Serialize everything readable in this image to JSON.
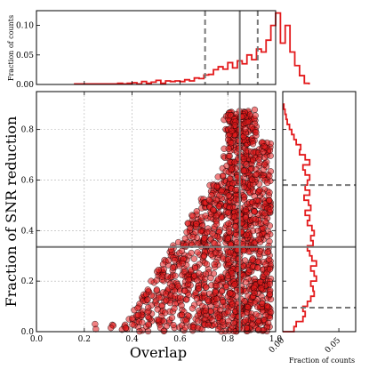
{
  "chart_data": [
    {
      "panel": "main",
      "type": "scatter",
      "xlabel": "Overlap",
      "ylabel": "Fraction of SNR reduction",
      "xlim": [
        0.0,
        1.0
      ],
      "ylim": [
        0.0,
        0.95
      ],
      "xticks": [
        "0.0",
        "0.2",
        "0.4",
        "0.6",
        "0.8",
        "1.0"
      ],
      "yticks": [
        "0.0",
        "0.2",
        "0.4",
        "0.6",
        "0.8"
      ],
      "grid": true,
      "marker_color": "#e31a1c",
      "marker_edge": "#000000",
      "reference_lines": {
        "x_median": 0.85,
        "y_median": 0.335
      },
      "point_density": [
        {
          "x_range": [
            0.15,
            0.3
          ],
          "count": 2
        },
        {
          "x_range": [
            0.3,
            0.4
          ],
          "count": 10
        },
        {
          "x_range": [
            0.4,
            0.5
          ],
          "count": 55
        },
        {
          "x_range": [
            0.5,
            0.6
          ],
          "count": 110
        },
        {
          "x_range": [
            0.6,
            0.7
          ],
          "count": 170
        },
        {
          "x_range": [
            0.7,
            0.8
          ],
          "count": 260
        },
        {
          "x_range": [
            0.8,
            0.9
          ],
          "count": 600
        },
        {
          "x_range": [
            0.9,
            0.98
          ],
          "count": 320
        }
      ]
    },
    {
      "panel": "top-histogram",
      "type": "histogram",
      "ylabel": "Fraction of counts",
      "xlim": [
        0.0,
        1.0
      ],
      "ylim": [
        0.0,
        0.125
      ],
      "yticks": [
        "0.00",
        "0.05",
        "0.10"
      ],
      "color": "#e31a1c",
      "bin_width": 0.02,
      "bin_start": 0.16,
      "values": [
        0.001,
        0.001,
        0.001,
        0.001,
        0.001,
        0.001,
        0.001,
        0.001,
        0.001,
        0.002,
        0.001,
        0.002,
        0.003,
        0.001,
        0.005,
        0.002,
        0.004,
        0.007,
        0.002,
        0.006,
        0.005,
        0.006,
        0.005,
        0.008,
        0.006,
        0.011,
        0.01,
        0.016,
        0.017,
        0.025,
        0.03,
        0.026,
        0.037,
        0.028,
        0.04,
        0.035,
        0.05,
        0.042,
        0.06,
        0.055,
        0.075,
        0.1,
        0.121,
        0.07,
        0.1,
        0.055,
        0.032,
        0.015,
        0.002
      ],
      "reference_lines": {
        "median": 0.85,
        "lower_dashed": 0.705,
        "upper_dashed": 0.925
      }
    },
    {
      "panel": "right-histogram",
      "type": "histogram",
      "orientation": "horizontal",
      "xlabel": "Fraction of counts",
      "xlim": [
        0.0,
        0.065
      ],
      "xticks": [
        "0.00",
        "0.05"
      ],
      "ylim": [
        0.0,
        0.95
      ],
      "color": "#e31a1c",
      "bin_width": 0.02,
      "bin_start": 0.0,
      "values": [
        0.01,
        0.012,
        0.018,
        0.02,
        0.018,
        0.022,
        0.025,
        0.028,
        0.027,
        0.025,
        0.03,
        0.028,
        0.025,
        0.03,
        0.026,
        0.024,
        0.022,
        0.027,
        0.025,
        0.028,
        0.026,
        0.022,
        0.024,
        0.02,
        0.025,
        0.023,
        0.019,
        0.024,
        0.02,
        0.022,
        0.024,
        0.02,
        0.018,
        0.024,
        0.02,
        0.015,
        0.016,
        0.012,
        0.01,
        0.008,
        0.006,
        0.004,
        0.003,
        0.002,
        0.001
      ],
      "reference_lines": {
        "median": 0.335,
        "lower_dashed": 0.095,
        "upper_dashed": 0.58
      }
    }
  ]
}
